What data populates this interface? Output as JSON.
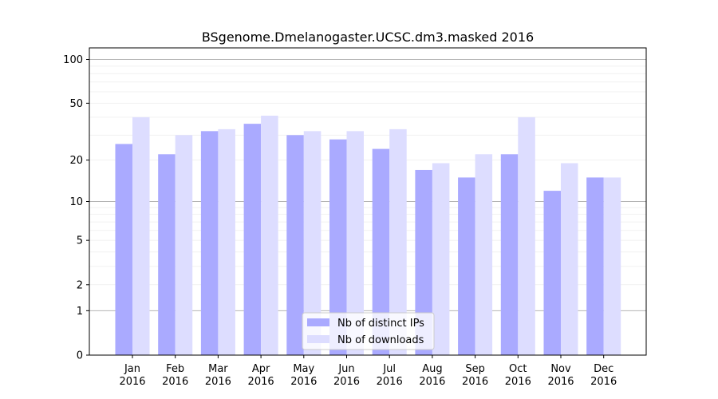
{
  "chart_data": {
    "type": "bar",
    "title": "BSgenome.Dmelanogaster.UCSC.dm3.masked 2016",
    "xlabel": "",
    "ylabel": "",
    "y_scale": "log1p",
    "ylim": [
      0,
      120
    ],
    "yticks": [
      0,
      1,
      2,
      5,
      10,
      20,
      50,
      100
    ],
    "grid": true,
    "legend_position": "lower center",
    "categories": [
      "Jan\n2016",
      "Feb\n2016",
      "Mar\n2016",
      "Apr\n2016",
      "May\n2016",
      "Jun\n2016",
      "Jul\n2016",
      "Aug\n2016",
      "Sep\n2016",
      "Oct\n2016",
      "Nov\n2016",
      "Dec\n2016"
    ],
    "series": [
      {
        "name": "Nb of distinct IPs",
        "color": "#aaaaff",
        "values": [
          26,
          22,
          32,
          36,
          30,
          28,
          24,
          17,
          15,
          22,
          12,
          15
        ]
      },
      {
        "name": "Nb of downloads",
        "color": "#ddddff",
        "values": [
          40,
          30,
          33,
          41,
          32,
          32,
          33,
          19,
          22,
          40,
          19,
          15
        ]
      }
    ]
  }
}
